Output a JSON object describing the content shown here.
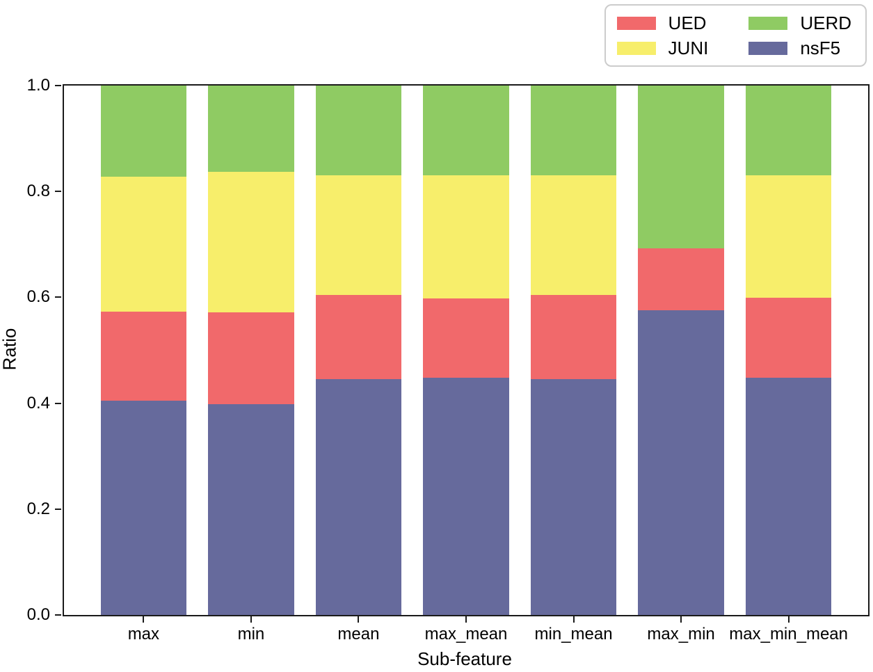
{
  "axes": {
    "ylabel": "Ratio",
    "xlabel": "Sub-feature",
    "yticks": [
      "0.0",
      "0.2",
      "0.4",
      "0.6",
      "0.8",
      "1.0"
    ],
    "spine_color": "#1a1a1a"
  },
  "legend": {
    "items": [
      {
        "label": "UED",
        "color": "#f1696b"
      },
      {
        "label": "JUNI",
        "color": "#f7ee6b"
      },
      {
        "label": "UERD",
        "color": "#8fcb63"
      },
      {
        "label": "nsF5",
        "color": "#666a9c"
      }
    ]
  },
  "chart_data": {
    "type": "bar",
    "stacked": true,
    "title": "",
    "xlabel": "Sub-feature",
    "ylabel": "Ratio",
    "ylim": [
      0,
      1
    ],
    "grid": false,
    "legend_position": "upper right, 2 columns, outside top of axes",
    "bar_width_fraction": 0.8,
    "x_margin": 0.34,
    "categories": [
      "max",
      "min",
      "mean",
      "max_mean",
      "min_mean",
      "max_min",
      "max_min_mean"
    ],
    "series": [
      {
        "name": "nsF5",
        "color": "#666a9c",
        "values": [
          0.405,
          0.398,
          0.445,
          0.448,
          0.445,
          0.576,
          0.448
        ]
      },
      {
        "name": "UED",
        "color": "#f1696b",
        "values": [
          0.168,
          0.174,
          0.16,
          0.15,
          0.16,
          0.116,
          0.151
        ]
      },
      {
        "name": "JUNI",
        "color": "#f7ee6b",
        "values": [
          0.255,
          0.265,
          0.225,
          0.233,
          0.226,
          0.0,
          0.231
        ]
      },
      {
        "name": "UERD",
        "color": "#8fcb63",
        "values": [
          0.172,
          0.163,
          0.17,
          0.169,
          0.169,
          0.308,
          0.17
        ]
      }
    ]
  }
}
